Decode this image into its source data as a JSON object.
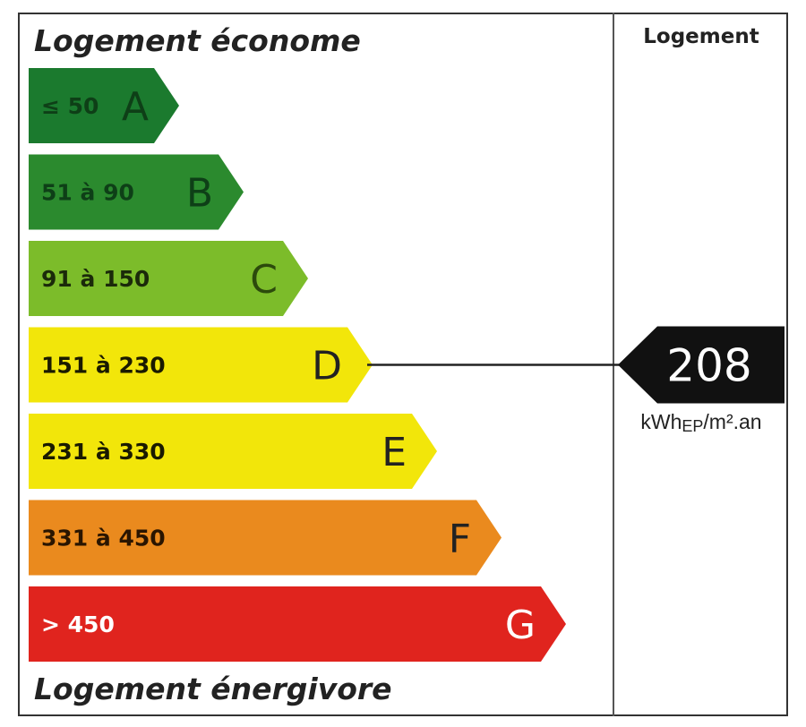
{
  "title_top": "Logement économe",
  "title_bottom": "Logement énergivore",
  "column_title": "Logement",
  "unit": "kWhEP/m².an",
  "chart_data": {
    "type": "bar",
    "categories": [
      "A",
      "B",
      "C",
      "D",
      "E",
      "F",
      "G"
    ],
    "ranges": [
      "≤ 50",
      "51 à 90",
      "91 à 150",
      "151 à 230",
      "231 à 330",
      "331 à 450",
      "> 450"
    ],
    "colors": [
      "#1b7a2e",
      "#2b8a2e",
      "#7cbc2a",
      "#f2e60a",
      "#f2e60a",
      "#ea8a1e",
      "#e0241e"
    ],
    "range_text_colors": [
      "#0e3f17",
      "#0e3f17",
      "#1b2a0a",
      "#1a1a00",
      "#1a1a00",
      "#2a1500",
      "#ffffff"
    ],
    "letter_colors": [
      "#0e3f17",
      "#0e3f17",
      "#2c4a0c",
      "#222222",
      "#222222",
      "#222222",
      "#ffffff"
    ],
    "value": 208,
    "value_class": "D",
    "value_color": "#111111"
  }
}
